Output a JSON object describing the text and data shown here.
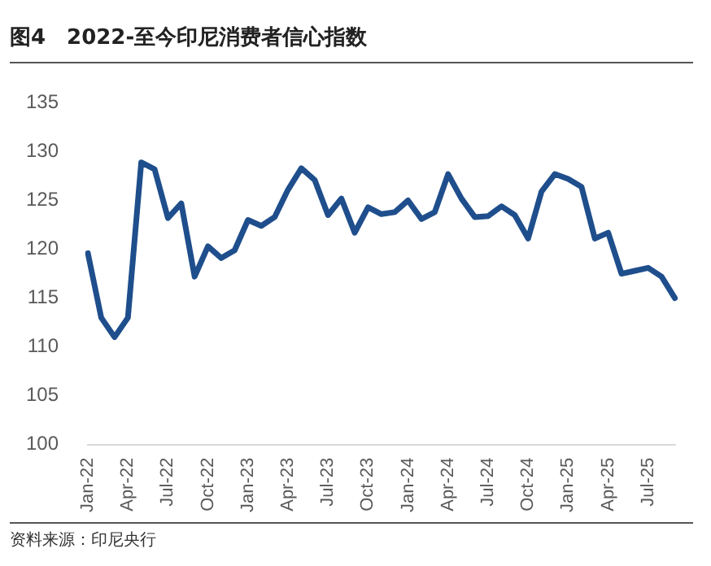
{
  "chart_data": {
    "type": "line",
    "title": "图4　2022-至今印尼消费者信心指数",
    "annotations": [
      "资料来源：印尼央行"
    ],
    "categories": [
      "Jan-22",
      null,
      null,
      "Apr-22",
      null,
      null,
      "Jul-22",
      null,
      null,
      "Oct-22",
      null,
      null,
      "Jan-23",
      null,
      null,
      "Apr-23",
      null,
      null,
      "Jul-23",
      null,
      null,
      "Oct-23",
      null,
      null,
      "Jan-24",
      null,
      null,
      "Apr-24",
      null,
      null,
      "Jul-24",
      null,
      null,
      "Oct-24",
      null,
      null,
      "Jan-25",
      null,
      null,
      "Apr-25",
      null,
      null,
      "Jul-25",
      null,
      null
    ],
    "series": [
      {
        "color": "#1f4e8c",
        "values": [
          119.6,
          113,
          111,
          113,
          128.9,
          128.2,
          123.2,
          124.7,
          117.2,
          120.3,
          119.1,
          119.9,
          123,
          122.4,
          123.3,
          126.1,
          128.3,
          127.1,
          123.5,
          125.2,
          121.7,
          124.3,
          123.6,
          123.8,
          125,
          123.1,
          123.8,
          127.7,
          125.2,
          123.3,
          123.4,
          124.4,
          123.5,
          121.1,
          125.9,
          127.7,
          127.2,
          126.4,
          121.1,
          121.7,
          117.5,
          117.8,
          118.1,
          117.2,
          115
        ]
      }
    ],
    "ylim": [
      100,
      135
    ],
    "yticks": [
      100,
      105,
      110,
      115,
      120,
      125,
      130,
      135
    ],
    "grid": false,
    "legend": false,
    "marker": "none",
    "line_style": "solid"
  }
}
